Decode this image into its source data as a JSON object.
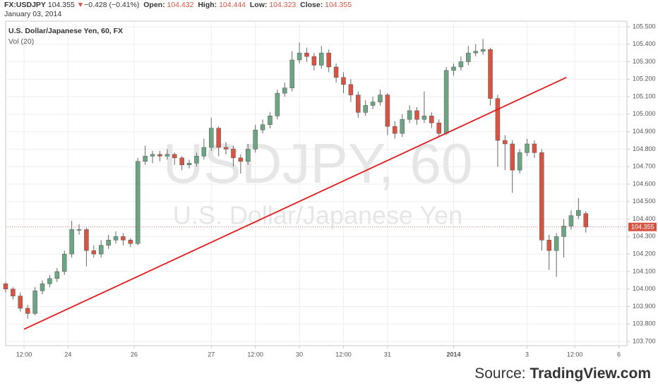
{
  "header": {
    "symbol": "FX:USDJPY",
    "arrow": "▼",
    "change": "−0.428 (−0.41%)",
    "open_label": "Open:",
    "high_label": "High:",
    "low_label": "Low:",
    "close_label": "Close:",
    "date": "January 03, 2014"
  },
  "chart_data": {
    "type": "candlestick",
    "subtitle": "U.S. Dollar/Japanese Yen, 60, FX",
    "indicator": "Vol (20)",
    "watermark": "USDJPY, 60",
    "watermark_sub": "U.S. Dollar/Japanese Yen",
    "source_prefix": "Source:",
    "source": "TradingView.com",
    "up_color": "#6ba583",
    "down_color": "#d75442",
    "grid": true,
    "xlim": [
      0,
      169.2
    ],
    "ylim": [
      103.676,
      105.532
    ],
    "xticks": [
      {
        "value": 5,
        "label": "12:00"
      },
      {
        "value": 17,
        "label": "24"
      },
      {
        "value": 35,
        "label": "26"
      },
      {
        "value": 56,
        "label": "27"
      },
      {
        "value": 68,
        "label": "12:00"
      },
      {
        "value": 80,
        "label": "30"
      },
      {
        "value": 92,
        "label": "12:00"
      },
      {
        "value": 104,
        "label": "31"
      },
      {
        "value": 122,
        "label": "2014"
      },
      {
        "value": 142,
        "label": "3"
      },
      {
        "value": 155,
        "label": "12:00"
      },
      {
        "value": 167,
        "label": "6"
      }
    ],
    "yticks": [
      {
        "value": 103.7,
        "label": "103.700"
      },
      {
        "value": 103.8,
        "label": "103.800"
      },
      {
        "value": 103.9,
        "label": "103.900"
      },
      {
        "value": 104.0,
        "label": "104.000"
      },
      {
        "value": 104.1,
        "label": "104.100"
      },
      {
        "value": 104.2,
        "label": "104.200"
      },
      {
        "value": 104.3,
        "label": "104.300"
      },
      {
        "value": 104.4,
        "label": "104.400"
      },
      {
        "value": 104.5,
        "label": "104.500"
      },
      {
        "value": 104.6,
        "label": "104.600"
      },
      {
        "value": 104.7,
        "label": "104.700"
      },
      {
        "value": 104.8,
        "label": "104.800"
      },
      {
        "value": 104.9,
        "label": "104.900"
      },
      {
        "value": 105.0,
        "label": "105.000"
      },
      {
        "value": 105.1,
        "label": "105.100"
      },
      {
        "value": 105.2,
        "label": "105.200"
      },
      {
        "value": 105.3,
        "label": "105.300"
      },
      {
        "value": 105.4,
        "label": "105.400"
      },
      {
        "value": 105.5,
        "label": "105.500"
      }
    ],
    "trendline": {
      "color": "#e31b1b",
      "x": [
        5,
        152.7
      ],
      "y": [
        103.77,
        105.21
      ]
    },
    "x": [
      0,
      2,
      4,
      6,
      8,
      10,
      12,
      14,
      16,
      18,
      20,
      22,
      24,
      26,
      28,
      30,
      32,
      34,
      36,
      38,
      40,
      42,
      44,
      46,
      48,
      50,
      52,
      54,
      56,
      58,
      60,
      62,
      64,
      66,
      68,
      70,
      72,
      74,
      76,
      78,
      80,
      82,
      84,
      86,
      88,
      90,
      92,
      94,
      96,
      98,
      100,
      102,
      104,
      106,
      108,
      110,
      112,
      114,
      116,
      118,
      120,
      122,
      124,
      126,
      128,
      130,
      132,
      134,
      136,
      138,
      140,
      142,
      144,
      146,
      148,
      150,
      152,
      154,
      156,
      158
    ],
    "open": [
      104.03,
      104.0,
      103.96,
      103.89,
      103.86,
      103.99,
      104.03,
      104.06,
      104.1,
      104.2,
      104.34,
      104.34,
      104.22,
      104.2,
      104.25,
      104.28,
      104.3,
      104.28,
      104.26,
      104.73,
      104.76,
      104.77,
      104.76,
      104.77,
      104.75,
      104.71,
      104.72,
      104.76,
      104.81,
      104.92,
      104.81,
      104.8,
      104.75,
      104.73,
      104.8,
      104.91,
      104.94,
      104.99,
      105.12,
      105.15,
      105.31,
      105.35,
      105.33,
      105.28,
      105.35,
      105.27,
      105.21,
      105.17,
      105.11,
      105.01,
      105.05,
      105.07,
      105.11,
      104.93,
      104.89,
      104.97,
      105.02,
      104.97,
      104.99,
      104.95,
      104.89,
      105.25,
      105.27,
      105.3,
      105.35,
      105.36,
      105.37,
      105.09,
      104.85,
      104.83,
      104.68,
      104.78,
      104.83,
      104.78,
      104.28,
      104.22,
      104.3,
      104.36,
      104.42,
      104.432
    ],
    "high": [
      104.04,
      104.01,
      103.98,
      103.91,
      104.01,
      104.05,
      104.08,
      104.12,
      104.22,
      104.39,
      104.37,
      104.35,
      104.25,
      104.28,
      104.31,
      104.33,
      104.32,
      104.29,
      104.75,
      104.82,
      104.79,
      104.79,
      104.8,
      104.78,
      104.76,
      104.74,
      104.78,
      104.86,
      104.98,
      104.93,
      104.84,
      104.82,
      104.77,
      104.83,
      104.94,
      104.97,
      105.01,
      105.14,
      105.18,
      105.36,
      105.41,
      105.38,
      105.35,
      105.39,
      105.37,
      105.29,
      105.24,
      105.2,
      105.13,
      105.08,
      105.1,
      105.14,
      105.12,
      104.96,
      105.0,
      105.05,
      105.04,
      105.13,
      105.01,
      104.97,
      105.27,
      105.29,
      105.33,
      105.39,
      105.4,
      105.43,
      105.38,
      105.11,
      104.88,
      104.85,
      104.8,
      104.86,
      104.85,
      104.8,
      104.31,
      104.32,
      104.4,
      104.45,
      104.52,
      104.444
    ],
    "low": [
      103.98,
      103.94,
      103.87,
      103.83,
      103.85,
      103.97,
      104.01,
      104.04,
      104.08,
      104.18,
      104.31,
      104.13,
      104.18,
      104.18,
      104.23,
      104.26,
      104.25,
      104.24,
      104.25,
      104.71,
      104.72,
      104.73,
      104.74,
      104.71,
      104.68,
      104.69,
      104.7,
      104.74,
      104.79,
      104.76,
      104.77,
      104.7,
      104.66,
      104.71,
      104.78,
      104.89,
      104.92,
      104.97,
      105.1,
      105.13,
      105.29,
      105.3,
      105.25,
      105.26,
      105.24,
      105.18,
      105.12,
      105.07,
      104.98,
      104.99,
      105.03,
      105.05,
      104.88,
      104.86,
      104.87,
      104.95,
      104.94,
      104.95,
      104.92,
      104.87,
      104.88,
      105.22,
      105.25,
      105.28,
      105.33,
      105.34,
      105.05,
      104.7,
      104.68,
      104.55,
      104.66,
      104.76,
      104.75,
      104.22,
      104.11,
      104.07,
      104.18,
      104.34,
      104.4,
      104.323
    ],
    "close": [
      104.0,
      103.96,
      103.89,
      103.86,
      103.99,
      104.03,
      104.06,
      104.1,
      104.2,
      104.34,
      104.34,
      104.22,
      104.2,
      104.25,
      104.28,
      104.3,
      104.28,
      104.26,
      104.73,
      104.76,
      104.77,
      104.76,
      104.77,
      104.75,
      104.71,
      104.72,
      104.76,
      104.81,
      104.92,
      104.81,
      104.8,
      104.75,
      104.73,
      104.8,
      104.91,
      104.94,
      104.99,
      105.12,
      105.15,
      105.31,
      105.35,
      105.33,
      105.28,
      105.35,
      105.27,
      105.21,
      105.17,
      105.11,
      105.01,
      105.05,
      105.07,
      105.11,
      104.93,
      104.89,
      104.97,
      105.02,
      104.97,
      104.99,
      104.95,
      104.89,
      105.25,
      105.27,
      105.3,
      105.35,
      105.36,
      105.37,
      105.09,
      104.85,
      104.83,
      104.68,
      104.78,
      104.83,
      104.78,
      104.28,
      104.22,
      104.3,
      104.36,
      104.42,
      104.45,
      104.355
    ]
  }
}
